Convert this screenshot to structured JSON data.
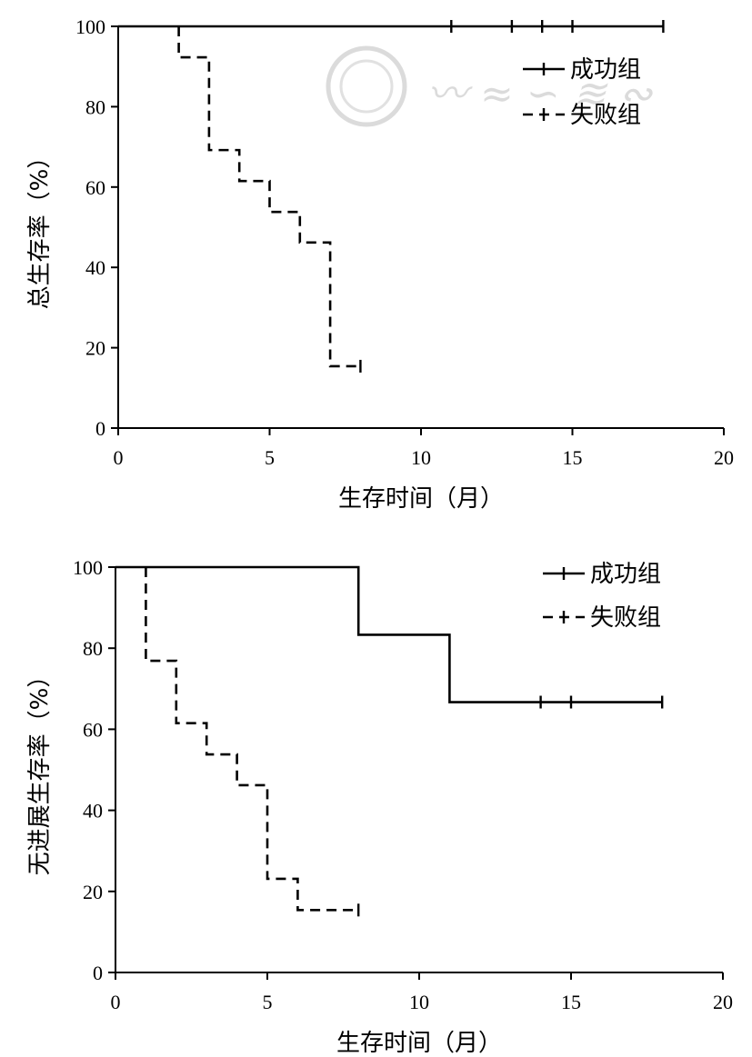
{
  "chart_data": [
    {
      "type": "line",
      "xlabel": "生存时间（月）",
      "ylabel": "总生存率（%）",
      "xlim": [
        0,
        20
      ],
      "ylim": [
        0,
        100
      ],
      "xticks": [
        "0",
        "5",
        "10",
        "15",
        "20"
      ],
      "yticks": [
        "0",
        "20",
        "40",
        "60",
        "80",
        "100"
      ],
      "legend_position": "top-right",
      "series": [
        {
          "name": "成功组",
          "style": "solid",
          "color": "#000000",
          "x": [
            0,
            18
          ],
          "y": [
            100,
            100
          ],
          "censored": [
            [
              11,
              100
            ],
            [
              13,
              100
            ],
            [
              14,
              100
            ],
            [
              15,
              100
            ],
            [
              18,
              100
            ]
          ]
        },
        {
          "name": "失败组",
          "style": "dashed",
          "color": "#000000",
          "x": [
            2,
            2,
            3,
            3,
            4,
            4,
            5,
            5,
            6,
            6,
            7,
            7,
            8
          ],
          "y": [
            100,
            92.3,
            92.3,
            69.2,
            69.2,
            61.5,
            61.5,
            53.8,
            53.8,
            46.2,
            46.2,
            15.4,
            15.4
          ],
          "censored": [
            [
              8,
              15.4
            ]
          ]
        }
      ]
    },
    {
      "type": "line",
      "xlabel": "生存时间（月）",
      "ylabel": "无进展生存率（%）",
      "xlim": [
        0,
        20
      ],
      "ylim": [
        0,
        100
      ],
      "xticks": [
        "0",
        "5",
        "10",
        "15",
        "20"
      ],
      "yticks": [
        "0",
        "20",
        "40",
        "60",
        "80",
        "100"
      ],
      "legend_position": "top-right",
      "series": [
        {
          "name": "成功组",
          "style": "solid",
          "color": "#000000",
          "x": [
            0,
            8,
            8,
            11,
            11,
            18
          ],
          "y": [
            100,
            100,
            83.3,
            83.3,
            66.7,
            66.7
          ],
          "censored": [
            [
              14,
              66.7
            ],
            [
              15,
              66.7
            ],
            [
              18,
              66.7
            ]
          ]
        },
        {
          "name": "失败组",
          "style": "dashed",
          "color": "#000000",
          "x": [
            1,
            1,
            2,
            2,
            3,
            3,
            4,
            4,
            5,
            5,
            6,
            6,
            8
          ],
          "y": [
            100,
            76.9,
            76.9,
            61.5,
            61.5,
            53.8,
            53.8,
            46.2,
            46.2,
            23.1,
            23.1,
            15.4,
            15.4
          ],
          "censored": [
            [
              8,
              15.4
            ]
          ]
        }
      ]
    }
  ]
}
